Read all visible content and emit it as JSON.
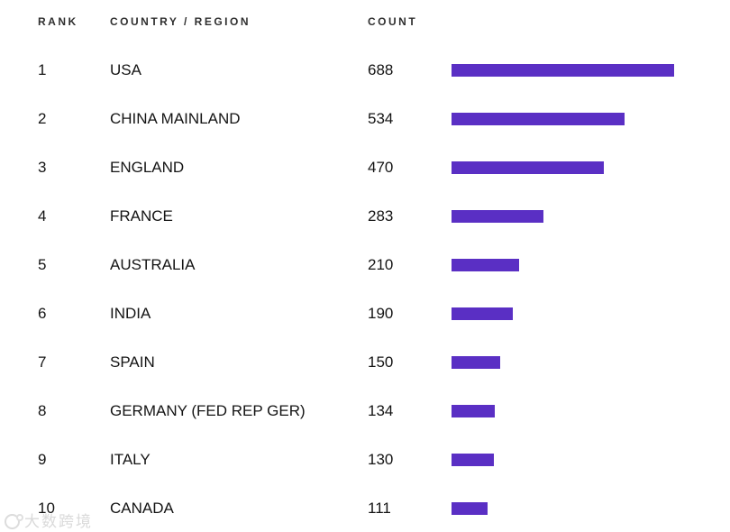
{
  "table": {
    "headers": [
      {
        "label": "RANK"
      },
      {
        "label": "COUNTRY / REGION"
      },
      {
        "label": "COUNT"
      }
    ],
    "rows": [
      {
        "rank": "1",
        "country": "USA",
        "count": "688"
      },
      {
        "rank": "2",
        "country": "CHINA MAINLAND",
        "count": "534"
      },
      {
        "rank": "3",
        "country": "ENGLAND",
        "count": "470"
      },
      {
        "rank": "4",
        "country": "FRANCE",
        "count": "283"
      },
      {
        "rank": "5",
        "country": "AUSTRALIA",
        "count": "210"
      },
      {
        "rank": "6",
        "country": "INDIA",
        "count": "190"
      },
      {
        "rank": "7",
        "country": "SPAIN",
        "count": "150"
      },
      {
        "rank": "8",
        "country": "GERMANY (FED REP GER)",
        "count": "134"
      },
      {
        "rank": "9",
        "country": "ITALY",
        "count": "130"
      },
      {
        "rank": "10",
        "country": "CANADA",
        "count": "111"
      }
    ]
  },
  "chart_data": {
    "type": "bar",
    "orientation": "horizontal",
    "categories": [
      "USA",
      "CHINA MAINLAND",
      "ENGLAND",
      "FRANCE",
      "AUSTRALIA",
      "INDIA",
      "SPAIN",
      "GERMANY (FED REP GER)",
      "ITALY",
      "CANADA"
    ],
    "values": [
      688,
      534,
      470,
      283,
      210,
      190,
      150,
      134,
      130,
      111
    ],
    "ranks": [
      1,
      2,
      3,
      4,
      5,
      6,
      7,
      8,
      9,
      10
    ],
    "title": "",
    "xlabel": "COUNT",
    "ylabel": "COUNTRY / REGION",
    "xlim": [
      0,
      688
    ],
    "grid": false,
    "legend": false,
    "bar_color": "#5a2fc4"
  },
  "watermark": {
    "text": "大数跨境"
  },
  "colors": {
    "bar": "#5a2fc4",
    "header_text": "#2f2f2f",
    "row_text": "#141414",
    "watermark": "#dadada",
    "background": "#ffffff"
  }
}
